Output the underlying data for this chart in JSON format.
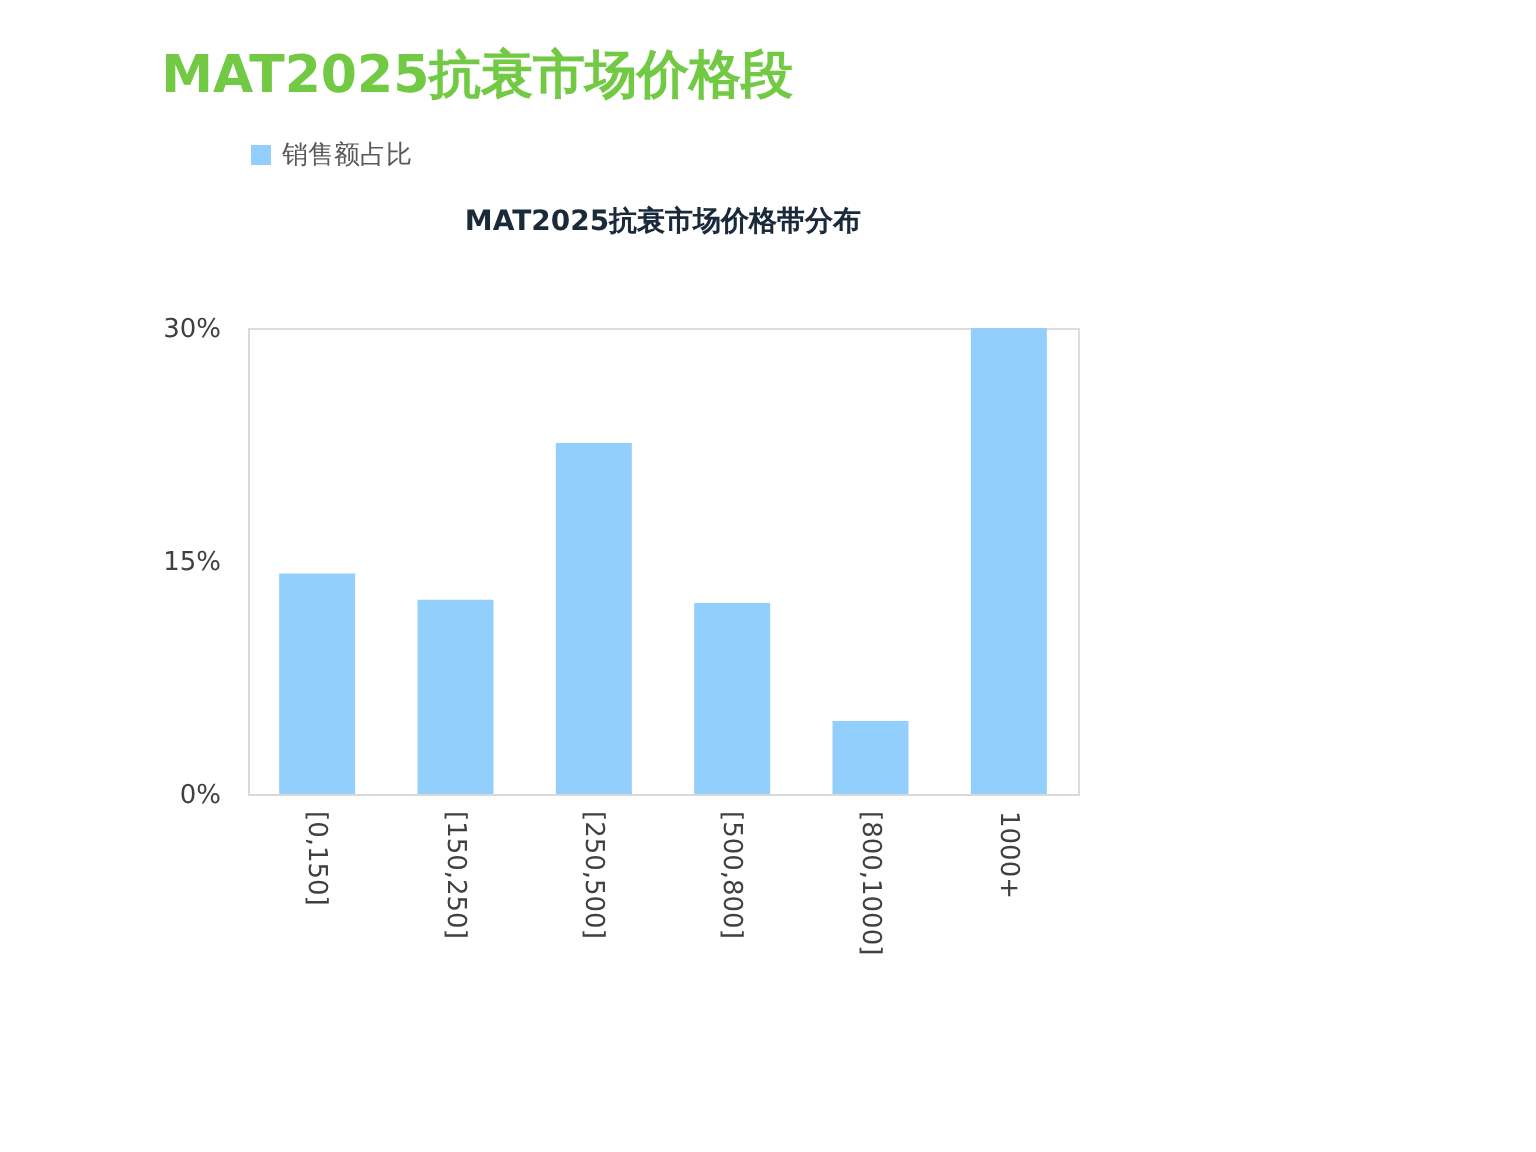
{
  "chart_data": {
    "type": "bar",
    "title": "MAT2025抗衰市场价格段",
    "subtitle": "MAT2025抗衰市场价格带分布",
    "categories": [
      "[0,150]",
      "[150,250]",
      "[250,500]",
      "[500,800]",
      "[800,1000]",
      "1000+"
    ],
    "series": [
      {
        "name": "销售额占比",
        "color": "#92cffc",
        "values": [
          14.2,
          12.5,
          22.6,
          12.3,
          4.7,
          30
        ]
      }
    ],
    "ylim": [
      0,
      30
    ],
    "yticks": [
      {
        "value": 0,
        "label": "0%"
      },
      {
        "value": 15,
        "label": "15%"
      },
      {
        "value": 30,
        "label": "30%"
      }
    ],
    "grid": false,
    "legend": "top"
  }
}
